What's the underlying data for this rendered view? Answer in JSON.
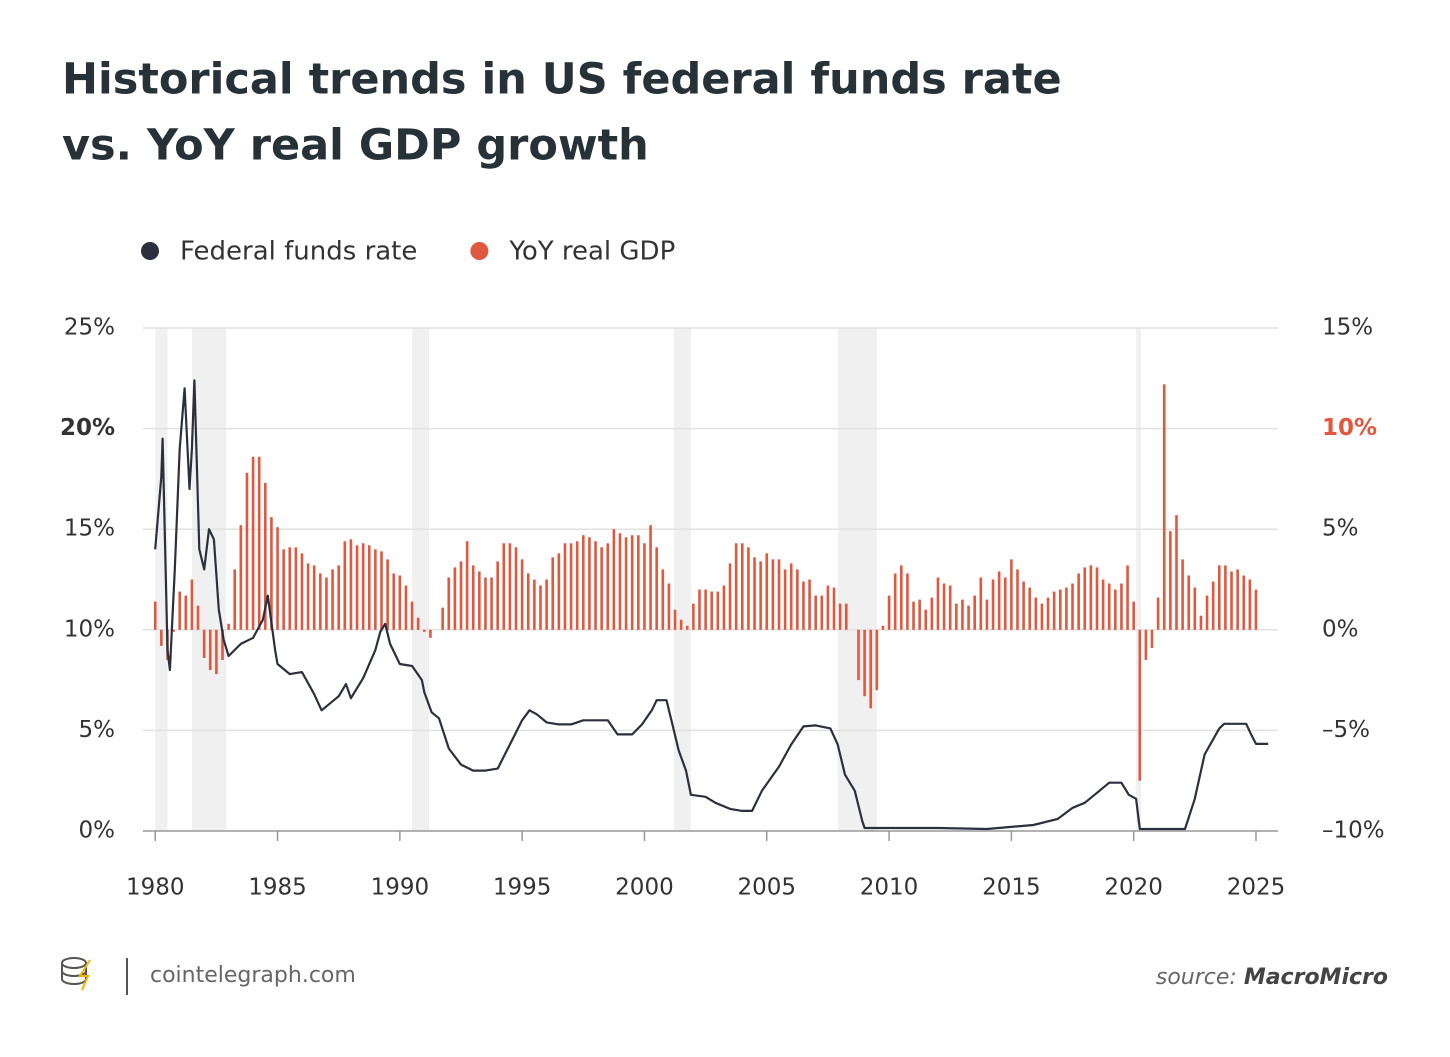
{
  "chart_data": {
    "type": "line_bar",
    "title": [
      "Historical trends in US federal funds rate",
      "vs. YoY real GDP growth"
    ],
    "xlim": [
      1979.5,
      2025.9
    ],
    "xticks": [
      1980,
      1985,
      1990,
      1995,
      2000,
      2005,
      2010,
      2015,
      2020,
      2025
    ],
    "ylim": [
      0,
      25
    ],
    "yticks": [
      {
        "value": 0,
        "label": "0%"
      },
      {
        "value": 5,
        "label": "5%"
      },
      {
        "value": 10,
        "label": "10%"
      },
      {
        "value": 15,
        "label": "15%"
      },
      {
        "value": 20,
        "label": "20%"
      },
      {
        "value": 25,
        "label": "25%"
      }
    ],
    "y2lim": [
      -10,
      15
    ],
    "y2ticks": [
      {
        "value": -10,
        "label": "–10%"
      },
      {
        "value": -5,
        "label": "–5%"
      },
      {
        "value": 0,
        "label": "0%"
      },
      {
        "value": 5,
        "label": "5%"
      },
      {
        "value": 10,
        "label": "10%"
      },
      {
        "value": 15,
        "label": "15%"
      }
    ],
    "grid": true,
    "recessions": [
      [
        1980.0,
        1980.5
      ],
      [
        1981.5,
        1982.9
      ],
      [
        1990.5,
        1991.2
      ],
      [
        2001.2,
        2001.9
      ],
      [
        2007.9,
        2009.5
      ],
      [
        2020.1,
        2020.3
      ]
    ],
    "series": [
      {
        "name": "Federal funds rate",
        "type": "line",
        "axis": "y",
        "color": "#2b2f3e",
        "x": [
          1980.0,
          1980.25,
          1980.3,
          1980.5,
          1980.6,
          1980.8,
          1981.0,
          1981.2,
          1981.4,
          1981.5,
          1981.6,
          1981.8,
          1982.0,
          1982.2,
          1982.4,
          1982.6,
          1982.8,
          1983.0,
          1983.5,
          1984.0,
          1984.4,
          1984.6,
          1984.9,
          1985.0,
          1985.5,
          1986.0,
          1986.5,
          1986.8,
          1987.0,
          1987.5,
          1987.8,
          1988.0,
          1988.5,
          1989.0,
          1989.2,
          1989.4,
          1989.6,
          1990.0,
          1990.5,
          1990.9,
          1991.0,
          1991.3,
          1991.6,
          1992.0,
          1992.5,
          1993.0,
          1993.5,
          1994.0,
          1994.5,
          1995.0,
          1995.3,
          1995.6,
          1996.0,
          1996.5,
          1997.0,
          1997.5,
          1998.0,
          1998.5,
          1998.9,
          1999.5,
          1999.9,
          2000.3,
          2000.5,
          2000.9,
          2001.1,
          2001.4,
          2001.7,
          2001.9,
          2002.5,
          2002.9,
          2003.5,
          2004.0,
          2004.4,
          2004.8,
          2005.5,
          2006.0,
          2006.5,
          2007.0,
          2007.6,
          2007.9,
          2008.2,
          2008.6,
          2008.9,
          2009.0,
          2010.0,
          2012.0,
          2014.0,
          2015.9,
          2016.9,
          2017.5,
          2018.0,
          2018.5,
          2019.0,
          2019.5,
          2019.8,
          2020.1,
          2020.25,
          2021.0,
          2022.1,
          2022.5,
          2022.9,
          2023.5,
          2023.7,
          2024.6,
          2024.8,
          2025.0,
          2025.5
        ],
        "values": [
          14,
          17.6,
          19.5,
          9.0,
          8.0,
          13,
          19,
          22,
          17,
          19,
          22.4,
          14,
          13,
          15,
          14.5,
          11,
          9.5,
          8.7,
          9.3,
          9.6,
          10.5,
          11.7,
          9,
          8.3,
          7.8,
          7.9,
          6.8,
          6,
          6.2,
          6.7,
          7.3,
          6.6,
          7.6,
          9.0,
          9.9,
          10.3,
          9.3,
          8.3,
          8.2,
          7.5,
          6.9,
          5.9,
          5.6,
          4.1,
          3.3,
          3.0,
          3.0,
          3.1,
          4.3,
          5.5,
          6.0,
          5.8,
          5.4,
          5.3,
          5.3,
          5.5,
          5.5,
          5.5,
          4.8,
          4.8,
          5.3,
          6.0,
          6.5,
          6.5,
          5.5,
          4.0,
          3.0,
          1.8,
          1.7,
          1.4,
          1.1,
          1.0,
          1.0,
          2.0,
          3.2,
          4.3,
          5.2,
          5.25,
          5.1,
          4.3,
          2.8,
          2.0,
          0.5,
          0.15,
          0.15,
          0.15,
          0.1,
          0.3,
          0.6,
          1.15,
          1.4,
          1.9,
          2.4,
          2.4,
          1.8,
          1.6,
          0.1,
          0.1,
          0.1,
          1.6,
          3.8,
          5.1,
          5.33,
          5.33,
          4.8,
          4.33,
          4.33
        ]
      },
      {
        "name": "YoY real GDP",
        "type": "bar",
        "axis": "y2",
        "color": "#e0583e",
        "x": [
          1980.0,
          1980.25,
          1980.5,
          1980.75,
          1981.0,
          1981.25,
          1981.5,
          1981.75,
          1982.0,
          1982.25,
          1982.5,
          1982.75,
          1983.0,
          1983.25,
          1983.5,
          1983.75,
          1984.0,
          1984.25,
          1984.5,
          1984.75,
          1985.0,
          1985.25,
          1985.5,
          1985.75,
          1986.0,
          1986.25,
          1986.5,
          1986.75,
          1987.0,
          1987.25,
          1987.5,
          1987.75,
          1988.0,
          1988.25,
          1988.5,
          1988.75,
          1989.0,
          1989.25,
          1989.5,
          1989.75,
          1990.0,
          1990.25,
          1990.5,
          1990.75,
          1991.0,
          1991.25,
          1991.5,
          1991.75,
          1992.0,
          1992.25,
          1992.5,
          1992.75,
          1993.0,
          1993.25,
          1993.5,
          1993.75,
          1994.0,
          1994.25,
          1994.5,
          1994.75,
          1995.0,
          1995.25,
          1995.5,
          1995.75,
          1996.0,
          1996.25,
          1996.5,
          1996.75,
          1997.0,
          1997.25,
          1997.5,
          1997.75,
          1998.0,
          1998.25,
          1998.5,
          1998.75,
          1999.0,
          1999.25,
          1999.5,
          1999.75,
          2000.0,
          2000.25,
          2000.5,
          2000.75,
          2001.0,
          2001.25,
          2001.5,
          2001.75,
          2002.0,
          2002.25,
          2002.5,
          2002.75,
          2003.0,
          2003.25,
          2003.5,
          2003.75,
          2004.0,
          2004.25,
          2004.5,
          2004.75,
          2005.0,
          2005.25,
          2005.5,
          2005.75,
          2006.0,
          2006.25,
          2006.5,
          2006.75,
          2007.0,
          2007.25,
          2007.5,
          2007.75,
          2008.0,
          2008.25,
          2008.5,
          2008.75,
          2009.0,
          2009.25,
          2009.5,
          2009.75,
          2010.0,
          2010.25,
          2010.5,
          2010.75,
          2011.0,
          2011.25,
          2011.5,
          2011.75,
          2012.0,
          2012.25,
          2012.5,
          2012.75,
          2013.0,
          2013.25,
          2013.5,
          2013.75,
          2014.0,
          2014.25,
          2014.5,
          2014.75,
          2015.0,
          2015.25,
          2015.5,
          2015.75,
          2016.0,
          2016.25,
          2016.5,
          2016.75,
          2017.0,
          2017.25,
          2017.5,
          2017.75,
          2018.0,
          2018.25,
          2018.5,
          2018.75,
          2019.0,
          2019.25,
          2019.5,
          2019.75,
          2020.0,
          2020.25,
          2020.5,
          2020.75,
          2021.0,
          2021.25,
          2021.5,
          2021.75,
          2022.0,
          2022.25,
          2022.5,
          2022.75,
          2023.0,
          2023.25,
          2023.5,
          2023.75,
          2024.0,
          2024.25,
          2024.5,
          2024.75,
          2025.0
        ],
        "values": [
          1.4,
          -0.8,
          -1.5,
          -0.1,
          1.9,
          1.7,
          2.5,
          1.2,
          -1.4,
          -2.0,
          -2.2,
          -1.5,
          0.3,
          3.0,
          5.2,
          7.8,
          8.6,
          8.6,
          7.3,
          5.6,
          5.1,
          4.0,
          4.1,
          4.1,
          3.8,
          3.3,
          3.2,
          2.8,
          2.6,
          3.0,
          3.2,
          4.4,
          4.5,
          4.2,
          4.3,
          4.2,
          4.0,
          3.9,
          3.5,
          2.8,
          2.7,
          2.2,
          1.4,
          0.6,
          -0.1,
          -0.4,
          0.0,
          1.1,
          2.6,
          3.1,
          3.4,
          4.4,
          3.2,
          2.9,
          2.6,
          2.6,
          3.4,
          4.3,
          4.3,
          4.1,
          3.5,
          2.8,
          2.5,
          2.2,
          2.5,
          3.6,
          3.8,
          4.3,
          4.3,
          4.4,
          4.7,
          4.6,
          4.4,
          4.1,
          4.3,
          5.0,
          4.8,
          4.6,
          4.7,
          4.7,
          4.3,
          5.2,
          4.1,
          3.0,
          2.3,
          1.0,
          0.5,
          0.2,
          1.3,
          2.0,
          2.0,
          1.9,
          1.9,
          2.2,
          3.3,
          4.3,
          4.3,
          4.1,
          3.6,
          3.4,
          3.8,
          3.5,
          3.5,
          3.0,
          3.3,
          3.0,
          2.4,
          2.5,
          1.7,
          1.7,
          2.2,
          2.1,
          1.3,
          1.3,
          0.0,
          -2.5,
          -3.3,
          -3.9,
          -3.0,
          0.2,
          1.7,
          2.8,
          3.2,
          2.8,
          1.4,
          1.5,
          1.0,
          1.6,
          2.6,
          2.3,
          2.2,
          1.3,
          1.5,
          1.2,
          1.7,
          2.6,
          1.5,
          2.5,
          2.9,
          2.6,
          3.5,
          3.0,
          2.4,
          2.1,
          1.6,
          1.3,
          1.6,
          1.9,
          2.0,
          2.1,
          2.3,
          2.8,
          3.1,
          3.2,
          3.1,
          2.5,
          2.3,
          2.0,
          2.3,
          3.2,
          1.4,
          -7.5,
          -1.5,
          -0.9,
          1.6,
          12.2,
          4.9,
          5.7,
          3.5,
          2.7,
          2.1,
          0.7,
          1.7,
          2.4,
          3.2,
          3.2,
          2.9,
          3.0,
          2.7,
          2.5,
          2.0
        ]
      }
    ]
  },
  "footer": {
    "site": "cointelegraph.com",
    "source_prefix": "source:",
    "source_name": "MacroMicro"
  }
}
